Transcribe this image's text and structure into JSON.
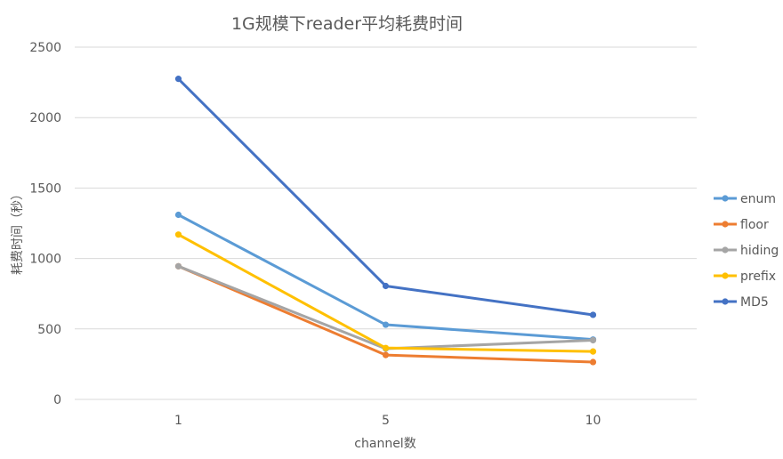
{
  "chart_data": {
    "type": "line",
    "title": "1G规模下reader平均耗费时间",
    "xlabel": "channel数",
    "ylabel": "耗费时间（秒）",
    "categories": [
      "1",
      "5",
      "10"
    ],
    "ylim": [
      0,
      2500
    ],
    "yticks": [
      "0",
      "500",
      "1000",
      "1500",
      "2000",
      "2500"
    ],
    "grid": true,
    "legend_position": "right",
    "series": [
      {
        "name": "enum",
        "color": "#5B9BD5",
        "values": [
          1310,
          530,
          425
        ]
      },
      {
        "name": "floor",
        "color": "#ED7D31",
        "values": [
          945,
          315,
          265
        ]
      },
      {
        "name": "hiding",
        "color": "#A5A5A5",
        "values": [
          945,
          360,
          420
        ]
      },
      {
        "name": "prefix",
        "color": "#FFC000",
        "values": [
          1170,
          365,
          340
        ]
      },
      {
        "name": "MD5",
        "color": "#4472C4",
        "values": [
          2275,
          805,
          600
        ]
      }
    ]
  }
}
